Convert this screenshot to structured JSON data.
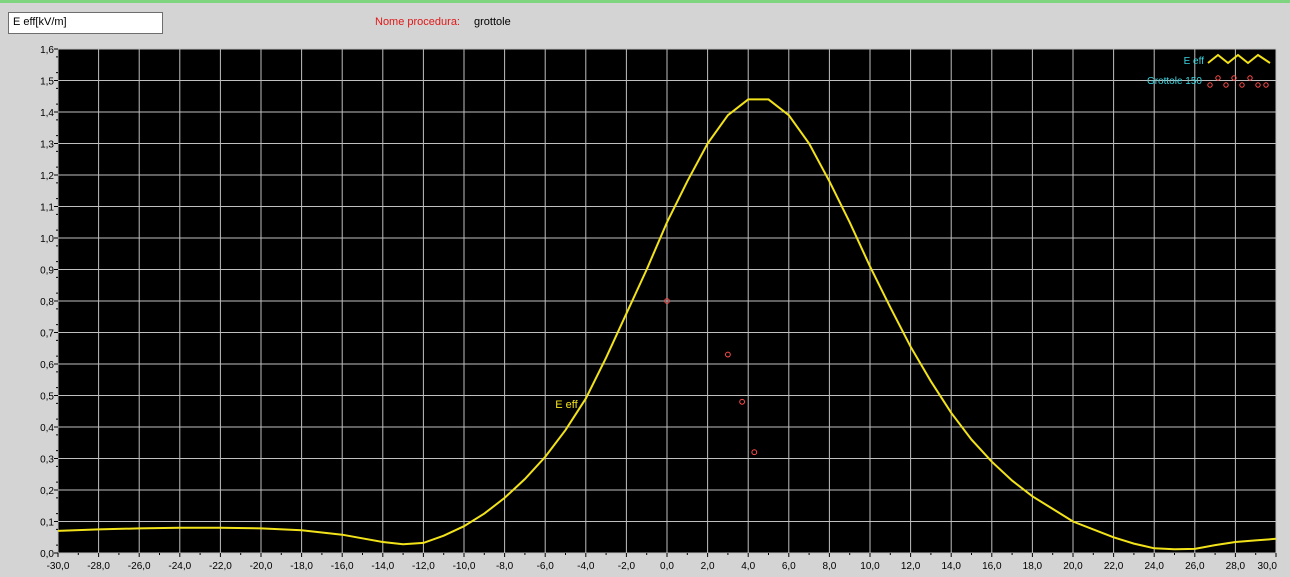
{
  "header": {
    "unit_field": "E eff[kV/m]",
    "procedure_label": "Nome procedura:",
    "procedure_value": "grottole"
  },
  "colors": {
    "plot_background": "#000000",
    "grid": "#bfbfbf",
    "line_series": "#f2e21a",
    "point_series": "#ff4d4d",
    "legend_text": "#39d5e0"
  },
  "chart_data": {
    "type": "line",
    "xlim": [
      -30,
      30
    ],
    "ylim": [
      0,
      1.6
    ],
    "x_ticks": [
      "-30,0",
      "-28,0",
      "-26,0",
      "-24,0",
      "-22,0",
      "-20,0",
      "-18,0",
      "-16,0",
      "-14,0",
      "-12,0",
      "-10,0",
      "-8,0",
      "-6,0",
      "-4,0",
      "-2,0",
      "0,0",
      "2,0",
      "4,0",
      "6,0",
      "8,0",
      "10,0",
      "12,0",
      "14,0",
      "16,0",
      "18,0",
      "20,0",
      "22,0",
      "24,0",
      "26,0",
      "28,0",
      "30,0"
    ],
    "y_ticks": [
      "0,0",
      "0,1",
      "0,2",
      "0,3",
      "0,4",
      "0,5",
      "0,6",
      "0,7",
      "0,8",
      "0,9",
      "1,0",
      "1,1",
      "1,2",
      "1,3",
      "1,4",
      "1,5",
      "1,6"
    ],
    "grid": true,
    "legend_position": "top-right",
    "series": [
      {
        "name": "E eff",
        "style": "line",
        "x": [
          -30,
          -28,
          -26,
          -24,
          -22,
          -20,
          -18,
          -16,
          -14,
          -13,
          -12,
          -11,
          -10,
          -9,
          -8,
          -7,
          -6,
          -5,
          -4,
          -3,
          -2,
          -1,
          0,
          1,
          2,
          3,
          4,
          5,
          6,
          7,
          8,
          9,
          10,
          11,
          12,
          13,
          14,
          15,
          16,
          17,
          18,
          19,
          20,
          21,
          22,
          23,
          24,
          25,
          26,
          27,
          28,
          29,
          30
        ],
        "y": [
          0.07,
          0.075,
          0.078,
          0.08,
          0.08,
          0.078,
          0.072,
          0.058,
          0.035,
          0.028,
          0.032,
          0.055,
          0.085,
          0.125,
          0.175,
          0.235,
          0.305,
          0.39,
          0.49,
          0.62,
          0.76,
          0.9,
          1.05,
          1.18,
          1.3,
          1.39,
          1.44,
          1.44,
          1.39,
          1.3,
          1.18,
          1.05,
          0.91,
          0.78,
          0.655,
          0.545,
          0.445,
          0.36,
          0.29,
          0.23,
          0.18,
          0.14,
          0.1,
          0.075,
          0.05,
          0.03,
          0.015,
          0.012,
          0.013,
          0.025,
          0.035,
          0.04,
          0.045
        ],
        "inline_label": "E eff",
        "inline_label_at": [
          -4.4,
          0.46
        ]
      },
      {
        "name": "Grottole 150",
        "style": "points",
        "x": [
          0.0,
          3.0,
          3.7,
          4.3
        ],
        "y": [
          0.8,
          0.63,
          0.48,
          0.32
        ]
      }
    ]
  }
}
